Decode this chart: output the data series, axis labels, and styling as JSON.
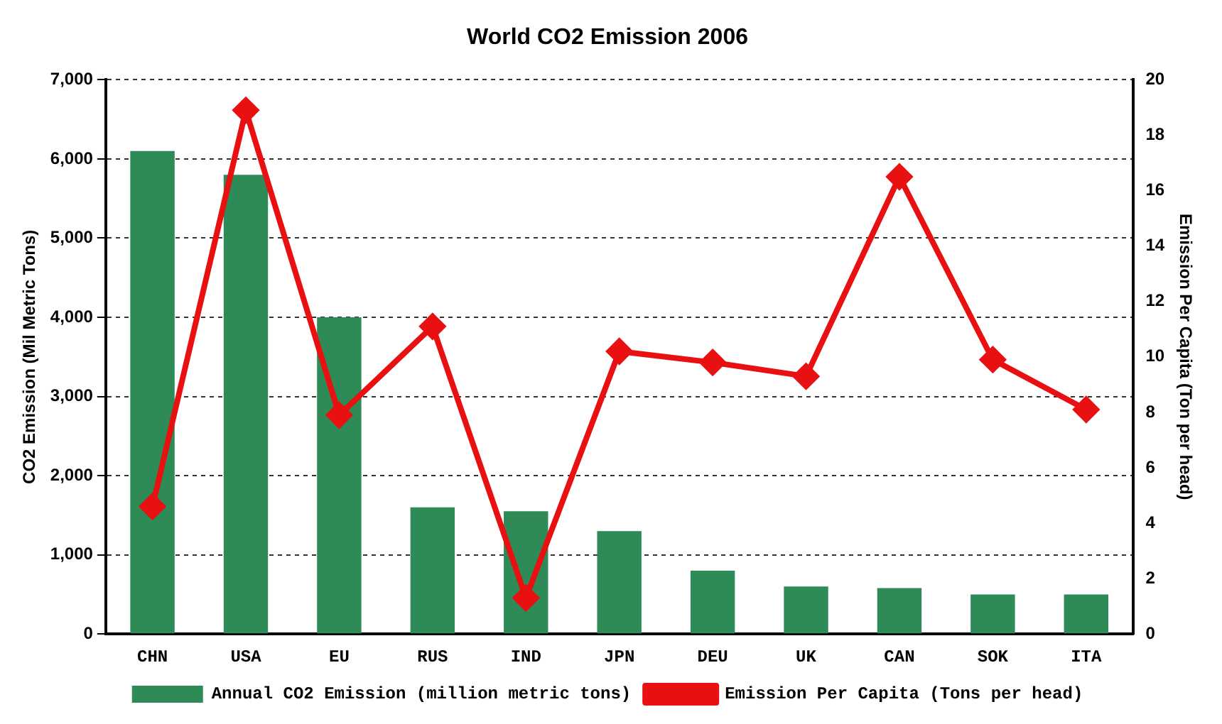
{
  "chart_data": {
    "type": "bar",
    "title": "World CO2 Emission 2006",
    "ylabel": "CO2 Emission (Mil Metric Tons)",
    "y2label": "Emission Per Capita (Ton per head)",
    "categories": [
      "CHN",
      "USA",
      "EU",
      "RUS",
      "IND",
      "JPN",
      "DEU",
      "UK",
      "CAN",
      "SOK",
      "ITA"
    ],
    "series": [
      {
        "name": "Annual CO2 Emission (million metric tons)",
        "color": "#2e8b57",
        "values": [
          6100,
          5800,
          4000,
          1600,
          1550,
          1300,
          800,
          600,
          580,
          500,
          500
        ]
      },
      {
        "name": "Emission Per Capita (Tons per head)",
        "type": "line",
        "axis": "y2",
        "color": "#e81010",
        "marker": "diamond",
        "values": [
          4.6,
          18.9,
          7.9,
          11.1,
          1.3,
          10.2,
          9.8,
          9.3,
          16.5,
          9.9,
          8.1
        ]
      }
    ],
    "ylim": [
      0,
      7000
    ],
    "yticks": [
      {
        "value": 0,
        "label": "0"
      },
      {
        "value": 1000,
        "label": "1,000"
      },
      {
        "value": 2000,
        "label": "2,000"
      },
      {
        "value": 3000,
        "label": "3,000"
      },
      {
        "value": 4000,
        "label": "4,000"
      },
      {
        "value": 5000,
        "label": "5,000"
      },
      {
        "value": 6000,
        "label": "6,000"
      },
      {
        "value": 7000,
        "label": "7,000"
      }
    ],
    "y2lim": [
      0,
      20
    ],
    "y2ticks": [
      0,
      2,
      4,
      6,
      8,
      10,
      12,
      14,
      16,
      18,
      20
    ],
    "grid": "y",
    "legend": "bottom"
  }
}
